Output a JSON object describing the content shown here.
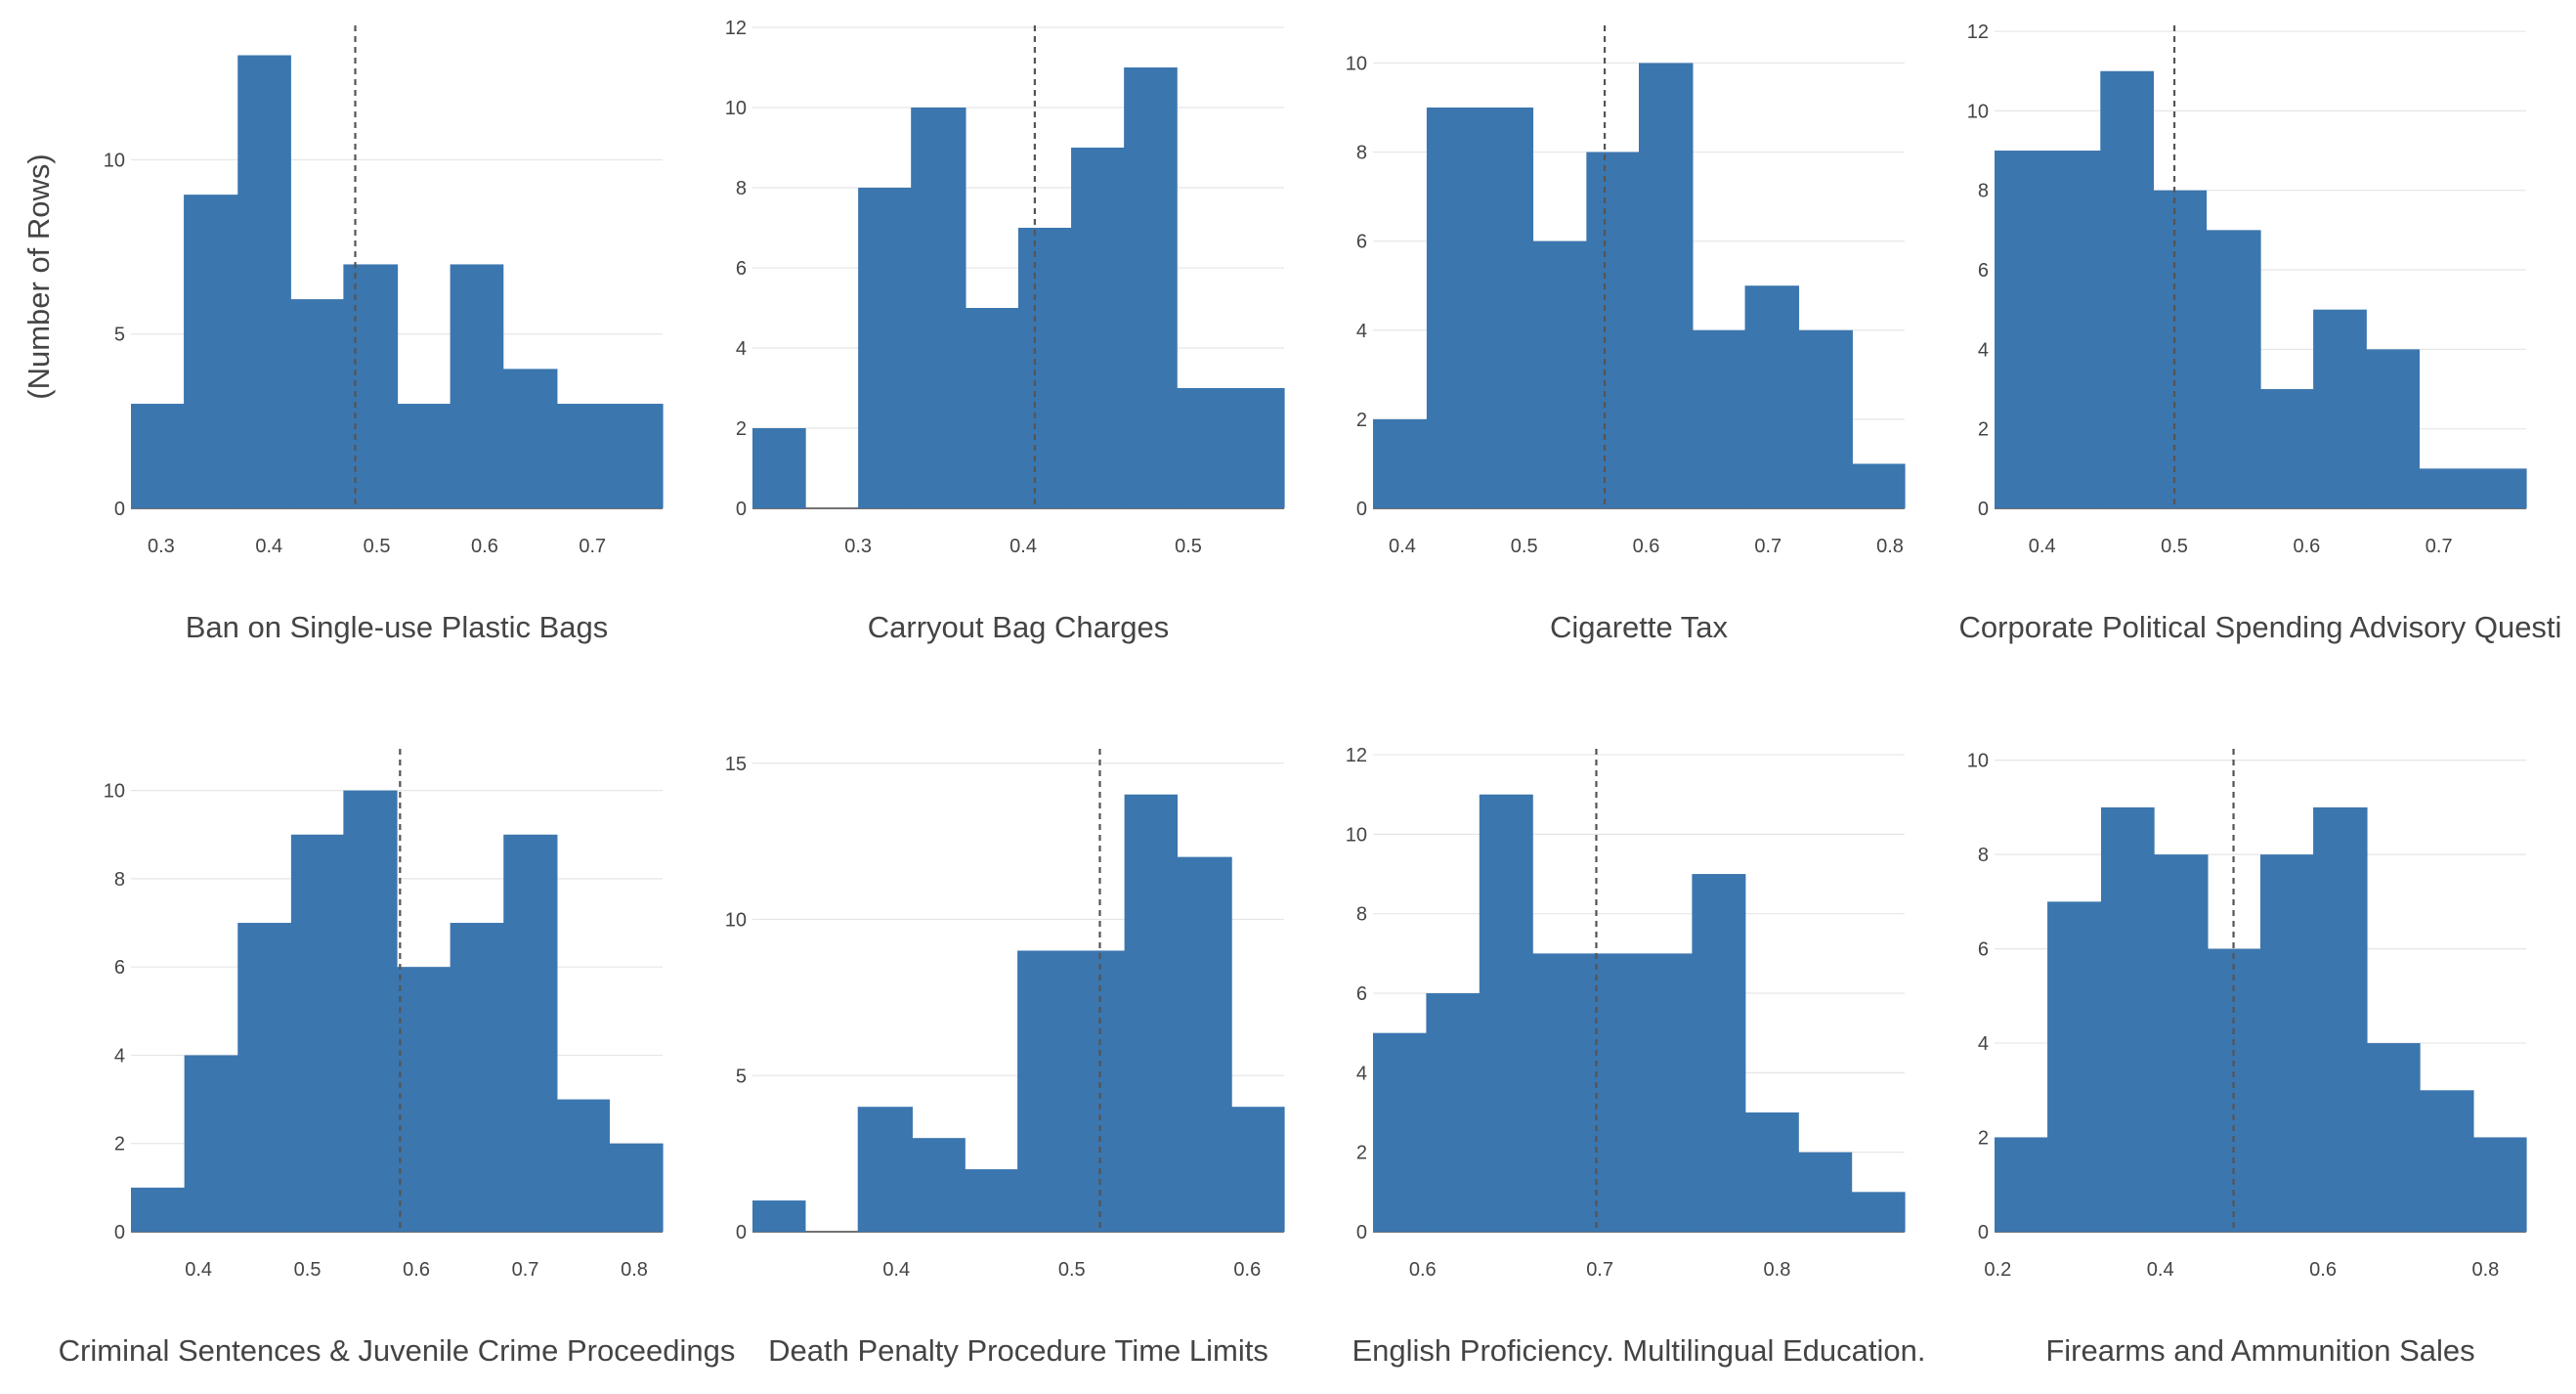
{
  "figure": {
    "y_axis_title": "(Number of Rows)",
    "bar_color": "#3b76af",
    "grid_color": "#e6e6e6",
    "mean_line_color": "#555555"
  },
  "chart_data": [
    {
      "type": "bar",
      "title": "Ban on Single-use Plastic Bags",
      "xlim": [
        0.272,
        0.765
      ],
      "ylim": [
        0,
        13.8
      ],
      "xticks": [
        0.3,
        0.4,
        0.5,
        0.6,
        0.7
      ],
      "yticks": [
        0,
        5,
        10
      ],
      "bin_edges": [
        0.272,
        0.321,
        0.371,
        0.42,
        0.469,
        0.519,
        0.568,
        0.617,
        0.667,
        0.716,
        0.765
      ],
      "values": [
        3,
        9,
        13,
        6,
        7,
        3,
        7,
        4,
        3,
        3
      ],
      "mean": 0.48
    },
    {
      "type": "bar",
      "title": "Carryout Bag Charges",
      "xlim": [
        0.236,
        0.558
      ],
      "ylim": [
        0,
        12
      ],
      "xticks": [
        0.3,
        0.4,
        0.5
      ],
      "yticks": [
        0,
        2,
        4,
        6,
        8,
        10,
        12
      ],
      "bin_edges": [
        0.236,
        0.268,
        0.3,
        0.332,
        0.365,
        0.397,
        0.429,
        0.461,
        0.493,
        0.526,
        0.558
      ],
      "values": [
        2,
        0,
        8,
        10,
        5,
        7,
        9,
        11,
        3,
        3
      ],
      "mean": 0.407
    },
    {
      "type": "bar",
      "title": "Cigarette Tax",
      "xlim": [
        0.376,
        0.812
      ],
      "ylim": [
        0,
        10.8
      ],
      "xticks": [
        0.4,
        0.5,
        0.6,
        0.7,
        0.8
      ],
      "yticks": [
        0,
        2,
        4,
        6,
        8,
        10
      ],
      "bin_edges": [
        0.376,
        0.42,
        0.463,
        0.507,
        0.551,
        0.594,
        0.638,
        0.681,
        0.725,
        0.769,
        0.812
      ],
      "values": [
        2,
        9,
        9,
        6,
        8,
        10,
        4,
        5,
        4,
        1
      ],
      "mean": 0.566
    },
    {
      "type": "bar",
      "title": "Corporate Political Spending Advisory Questi",
      "xlim": [
        0.364,
        0.766
      ],
      "ylim": [
        0,
        12.1
      ],
      "xticks": [
        0.4,
        0.5,
        0.6,
        0.7
      ],
      "yticks": [
        0,
        2,
        4,
        6,
        8,
        10,
        12
      ],
      "bin_edges": [
        0.364,
        0.404,
        0.444,
        0.484,
        0.524,
        0.565,
        0.605,
        0.645,
        0.685,
        0.725,
        0.766
      ],
      "values": [
        9,
        9,
        11,
        8,
        7,
        3,
        5,
        4,
        1,
        1
      ],
      "mean": 0.5
    },
    {
      "type": "bar",
      "title": "Criminal Sentences & Juvenile Crime Proceedings",
      "xlim": [
        0.338,
        0.826
      ],
      "ylim": [
        0,
        10.9
      ],
      "xticks": [
        0.4,
        0.5,
        0.6,
        0.7,
        0.8
      ],
      "yticks": [
        0,
        2,
        4,
        6,
        8,
        10
      ],
      "bin_edges": [
        0.338,
        0.387,
        0.436,
        0.485,
        0.533,
        0.582,
        0.631,
        0.68,
        0.729,
        0.777,
        0.826
      ],
      "values": [
        1,
        4,
        7,
        9,
        10,
        6,
        7,
        9,
        3,
        2
      ],
      "mean": 0.585
    },
    {
      "type": "bar",
      "title": "Death Penalty Procedure Time Limits",
      "xlim": [
        0.318,
        0.621
      ],
      "ylim": [
        0,
        15.4
      ],
      "xticks": [
        0.4,
        0.5,
        0.6
      ],
      "yticks": [
        0,
        5,
        10,
        15
      ],
      "bin_edges": [
        0.318,
        0.348,
        0.378,
        0.409,
        0.439,
        0.469,
        0.5,
        0.53,
        0.56,
        0.591,
        0.621
      ],
      "values": [
        1,
        0,
        4,
        3,
        2,
        9,
        9,
        14,
        12,
        4
      ],
      "mean": 0.516
    },
    {
      "type": "bar",
      "title": "English Proficiency. Multilingual Education.",
      "xlim": [
        0.572,
        0.872
      ],
      "ylim": [
        0,
        12.1
      ],
      "xticks": [
        0.6,
        0.7,
        0.8
      ],
      "yticks": [
        0,
        2,
        4,
        6,
        8,
        10,
        12
      ],
      "bin_edges": [
        0.572,
        0.602,
        0.632,
        0.662,
        0.692,
        0.722,
        0.752,
        0.782,
        0.812,
        0.842,
        0.872
      ],
      "values": [
        5,
        6,
        11,
        7,
        7,
        7,
        9,
        3,
        2,
        1
      ],
      "mean": 0.698
    },
    {
      "type": "bar",
      "title": "Firearms and Ammunition Sales",
      "xlim": [
        0.196,
        0.85
      ],
      "ylim": [
        0,
        10.2
      ],
      "xticks": [
        0.2,
        0.4,
        0.6,
        0.8
      ],
      "yticks": [
        0,
        2,
        4,
        6,
        8,
        10
      ],
      "bin_edges": [
        0.196,
        0.261,
        0.327,
        0.392,
        0.458,
        0.523,
        0.588,
        0.654,
        0.719,
        0.785,
        0.85
      ],
      "values": [
        2,
        7,
        9,
        8,
        6,
        8,
        9,
        4,
        3,
        2
      ],
      "mean": 0.49
    }
  ]
}
